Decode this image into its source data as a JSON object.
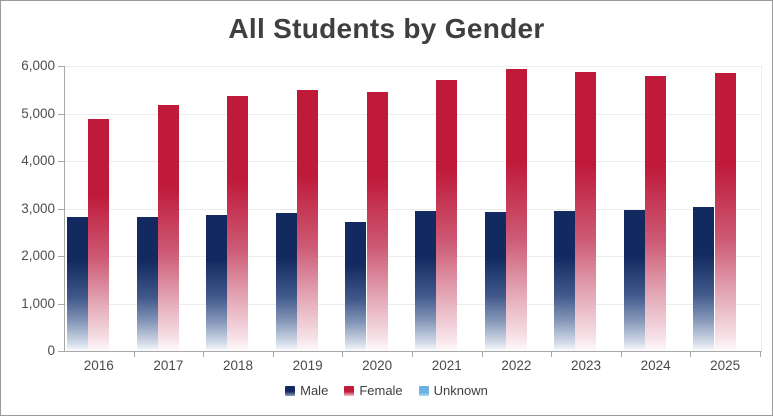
{
  "chart_data": {
    "type": "bar",
    "title": "All Students by Gender",
    "categories": [
      "2016",
      "2017",
      "2018",
      "2019",
      "2020",
      "2021",
      "2022",
      "2023",
      "2024",
      "2025"
    ],
    "series": [
      {
        "name": "Male",
        "color": "#132a60",
        "values": [
          2820,
          2820,
          2870,
          2910,
          2720,
          2950,
          2930,
          2940,
          2970,
          3040
        ]
      },
      {
        "name": "Female",
        "color": "#bf1a3a",
        "values": [
          4890,
          5170,
          5380,
          5500,
          5450,
          5710,
          5940,
          5880,
          5780,
          5850
        ]
      },
      {
        "name": "Unknown",
        "color": "#6cb3e3",
        "values": [
          0,
          0,
          0,
          0,
          0,
          0,
          0,
          0,
          0,
          0
        ]
      }
    ],
    "xlabel": "",
    "ylabel": "",
    "ylim": [
      0,
      6000
    ],
    "ytick_interval": 1000,
    "ytick_labels": [
      "0",
      "1,000",
      "2,000",
      "3,000",
      "4,000",
      "5,000",
      "6,000"
    ],
    "grid": "horizontal",
    "legend_position": "bottom",
    "bar_style": "vertical gradient fading to white at bar bottom",
    "colors": {
      "title_text": "#3f3f3f",
      "axis_text": "#4a4a4a",
      "axis_line": "#a8a8a8",
      "gridline": "#ececec",
      "background": "#ffffff",
      "frame_border": "#9a9a9a"
    }
  }
}
